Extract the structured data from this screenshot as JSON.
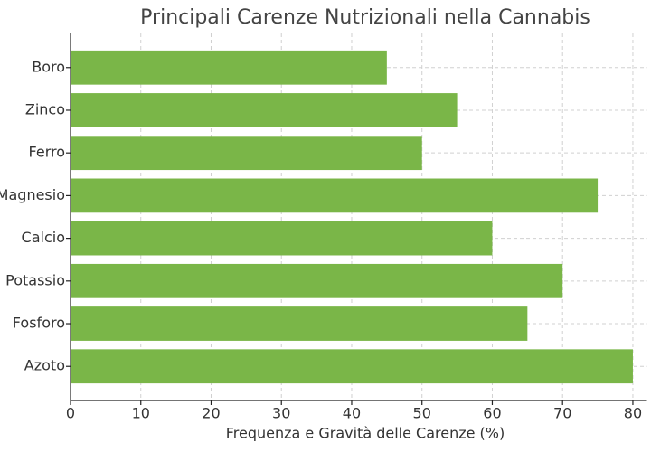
{
  "chart_data": {
    "type": "bar",
    "orientation": "horizontal",
    "title": "Principali Carenze Nutrizionali nella Cannabis",
    "x_label": "Frequenza e Gravità delle Carenze (%)",
    "categories": [
      "Azoto",
      "Fosforo",
      "Potassio",
      "Calcio",
      "Magnesio",
      "Ferro",
      "Zinco",
      "Boro"
    ],
    "values": [
      80,
      65,
      70,
      60,
      75,
      50,
      55,
      45
    ],
    "color": "#7ab648",
    "xlim": [
      0,
      82
    ],
    "xticks": [
      0,
      10,
      20,
      30,
      40,
      50,
      60,
      70,
      80
    ],
    "grid": true
  }
}
